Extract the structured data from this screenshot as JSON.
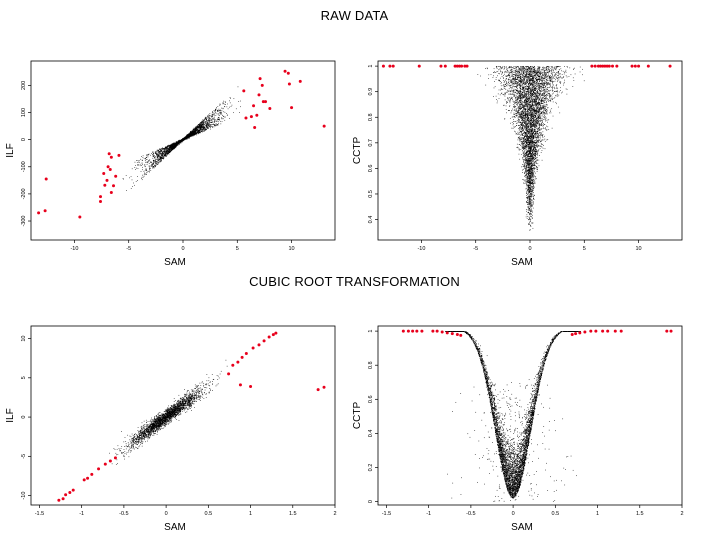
{
  "sections": [
    {
      "title": "RAW DATA"
    },
    {
      "title": "CUBIC ROOT TRANSFORMATION"
    }
  ],
  "colors": {
    "points": "#000000",
    "highlight": "#e8001c",
    "axis": "#000000"
  },
  "chart_data": [
    {
      "type": "scatter",
      "section": "RAW DATA",
      "xlabel": "SAM",
      "ylabel": "ILF",
      "xlim": [
        -14,
        14
      ],
      "ylim": [
        -370,
        290
      ],
      "xticks": [
        -10,
        -5,
        0,
        5,
        10
      ],
      "yticks": [
        -300,
        -200,
        -100,
        0,
        100,
        200
      ],
      "cloud": {
        "shape": "bowtie",
        "x_half_range": 5,
        "slope": 30,
        "n": 2600
      },
      "highlight": [
        [
          -13.3,
          -270
        ],
        [
          -12.7,
          -262
        ],
        [
          -12.6,
          -145
        ],
        [
          -9.5,
          -285
        ],
        [
          -7.6,
          -228
        ],
        [
          -7.6,
          -210
        ],
        [
          -7.3,
          -125
        ],
        [
          -7.2,
          -168
        ],
        [
          -7.0,
          -150
        ],
        [
          -6.9,
          -100
        ],
        [
          -6.8,
          -52
        ],
        [
          -6.7,
          -110
        ],
        [
          -6.6,
          -195
        ],
        [
          -6.6,
          -65
        ],
        [
          -6.4,
          -170
        ],
        [
          -6.2,
          -135
        ],
        [
          -5.9,
          -58
        ],
        [
          5.6,
          180
        ],
        [
          5.8,
          80
        ],
        [
          6.3,
          85
        ],
        [
          6.5,
          125
        ],
        [
          6.6,
          45
        ],
        [
          6.8,
          90
        ],
        [
          7.0,
          165
        ],
        [
          7.1,
          225
        ],
        [
          7.3,
          200
        ],
        [
          7.4,
          140
        ],
        [
          7.6,
          140
        ],
        [
          8.0,
          115
        ],
        [
          9.4,
          252
        ],
        [
          9.7,
          245
        ],
        [
          9.8,
          205
        ],
        [
          10.0,
          118
        ],
        [
          10.8,
          215
        ],
        [
          13.0,
          50
        ]
      ]
    },
    {
      "type": "scatter",
      "section": "RAW DATA",
      "xlabel": "SAM",
      "ylabel": "CCTP",
      "xlim": [
        -14,
        14
      ],
      "ylim": [
        0.32,
        1.02
      ],
      "xticks": [
        -10,
        -5,
        0,
        5,
        10
      ],
      "yticks": [
        0.4,
        0.5,
        0.6,
        0.7,
        0.8,
        0.9,
        1.0
      ],
      "cloud": {
        "shape": "funnel",
        "n": 5200
      },
      "highlight": [
        [
          -13.5,
          1
        ],
        [
          -12.9,
          1
        ],
        [
          -12.6,
          1
        ],
        [
          -10.2,
          1
        ],
        [
          -8.2,
          1
        ],
        [
          -7.8,
          1
        ],
        [
          -6.9,
          1
        ],
        [
          -6.7,
          1
        ],
        [
          -6.5,
          1
        ],
        [
          -6.3,
          1
        ],
        [
          -6.0,
          1
        ],
        [
          -5.8,
          1
        ],
        [
          5.7,
          1
        ],
        [
          6.0,
          1
        ],
        [
          6.3,
          1
        ],
        [
          6.5,
          1
        ],
        [
          6.7,
          1
        ],
        [
          6.9,
          1
        ],
        [
          7.1,
          1
        ],
        [
          7.3,
          1
        ],
        [
          7.6,
          1
        ],
        [
          8.0,
          1
        ],
        [
          9.4,
          1
        ],
        [
          9.7,
          1
        ],
        [
          10.0,
          1
        ],
        [
          10.9,
          1
        ],
        [
          12.9,
          1
        ]
      ]
    },
    {
      "type": "scatter",
      "section": "CUBIC ROOT TRANSFORMATION",
      "xlabel": "SAM",
      "ylabel": "ILF",
      "xlim": [
        -1.6,
        2.0
      ],
      "ylim": [
        -11.2,
        11.6
      ],
      "xticks": [
        -1.5,
        -1.0,
        -0.5,
        0.0,
        0.5,
        1.0,
        1.5,
        2.0
      ],
      "yticks": [
        -10,
        -5,
        0,
        5,
        10
      ],
      "cloud": {
        "shape": "line",
        "slope": 8.2,
        "n": 2600
      },
      "highlight": [
        [
          -1.27,
          -10.6
        ],
        [
          -1.22,
          -10.4
        ],
        [
          -1.19,
          -9.9
        ],
        [
          -1.14,
          -9.6
        ],
        [
          -1.1,
          -9.3
        ],
        [
          -0.97,
          -8.0
        ],
        [
          -0.93,
          -7.8
        ],
        [
          -0.88,
          -7.3
        ],
        [
          -0.8,
          -6.6
        ],
        [
          -0.72,
          -6.0
        ],
        [
          -0.66,
          -5.6
        ],
        [
          -0.6,
          -5.2
        ],
        [
          0.74,
          5.5
        ],
        [
          0.79,
          6.6
        ],
        [
          0.85,
          7.0
        ],
        [
          0.9,
          7.6
        ],
        [
          0.95,
          8.1
        ],
        [
          1.03,
          8.8
        ],
        [
          1.1,
          9.2
        ],
        [
          1.16,
          9.7
        ],
        [
          1.22,
          10.2
        ],
        [
          1.27,
          10.5
        ],
        [
          1.3,
          10.7
        ],
        [
          0.88,
          4.1
        ],
        [
          1.0,
          3.9
        ],
        [
          1.8,
          3.5
        ],
        [
          1.87,
          3.8
        ]
      ]
    },
    {
      "type": "scatter",
      "section": "CUBIC ROOT TRANSFORMATION",
      "xlabel": "SAM",
      "ylabel": "CCTP",
      "xlim": [
        -1.6,
        2.0
      ],
      "ylim": [
        -0.02,
        1.03
      ],
      "xticks": [
        -1.5,
        -1.0,
        -0.5,
        0.0,
        0.5,
        1.0,
        1.5,
        2.0
      ],
      "yticks": [
        0.0,
        0.2,
        0.4,
        0.6,
        0.8,
        1.0
      ],
      "cloud": {
        "shape": "valley",
        "n": 5200
      },
      "highlight": [
        [
          -1.3,
          1
        ],
        [
          -1.24,
          1
        ],
        [
          -1.19,
          1
        ],
        [
          -1.14,
          1
        ],
        [
          -1.08,
          1
        ],
        [
          -0.95,
          1
        ],
        [
          -0.9,
          1
        ],
        [
          -0.84,
          0.995
        ],
        [
          -0.78,
          0.99
        ],
        [
          -0.72,
          0.985
        ],
        [
          -0.66,
          0.98
        ],
        [
          -0.62,
          0.975
        ],
        [
          0.7,
          0.98
        ],
        [
          0.74,
          0.985
        ],
        [
          0.79,
          0.99
        ],
        [
          0.85,
          0.995
        ],
        [
          0.92,
          1
        ],
        [
          0.98,
          1
        ],
        [
          1.06,
          1
        ],
        [
          1.12,
          1
        ],
        [
          1.21,
          1
        ],
        [
          1.28,
          1
        ],
        [
          1.82,
          1
        ],
        [
          1.87,
          1
        ]
      ]
    }
  ]
}
